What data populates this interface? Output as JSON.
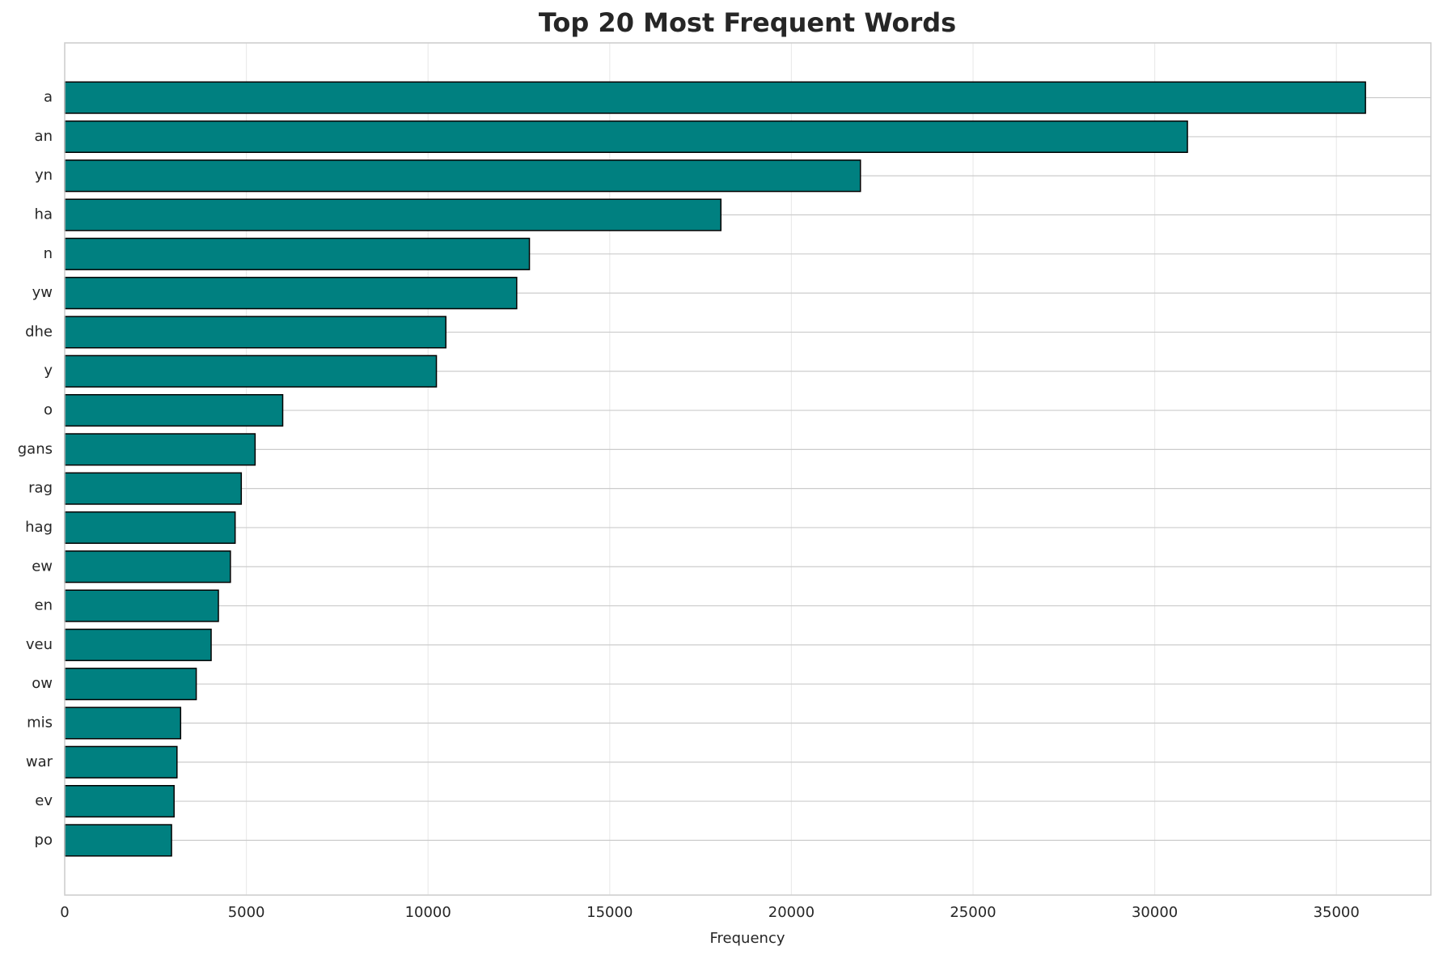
{
  "chart_data": {
    "type": "barh",
    "title": "Top 20 Most Frequent Words",
    "x_label": "Frequency",
    "categories": [
      "a",
      "an",
      "yn",
      "ha",
      "n",
      "yw",
      "dhe",
      "y",
      "o",
      "gans",
      "rag",
      "hag",
      "ew",
      "en",
      "veu",
      "ow",
      "mis",
      "war",
      "ev",
      "po"
    ],
    "values": [
      35800,
      30900,
      21900,
      18060,
      12790,
      12440,
      10490,
      10230,
      6000,
      5240,
      4860,
      4690,
      4560,
      4230,
      4030,
      3620,
      3190,
      3090,
      3010,
      2940
    ],
    "color": "#008080",
    "edge_color": "#000000",
    "xlim": [
      0,
      37600
    ],
    "xticks": [
      0,
      5000,
      10000,
      15000,
      20000,
      25000,
      30000,
      35000
    ],
    "grid": true
  }
}
